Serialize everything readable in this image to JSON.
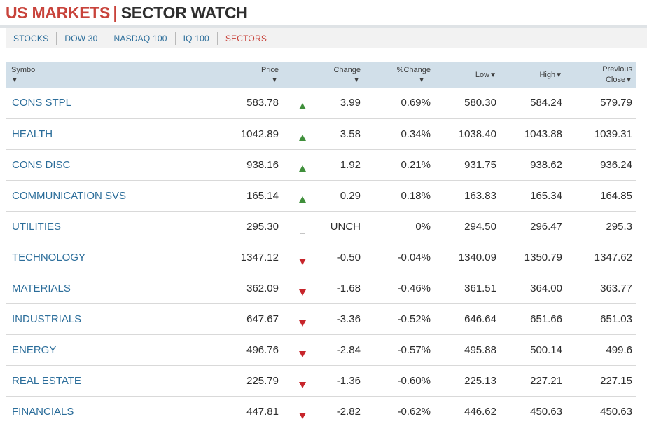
{
  "header": {
    "title_part1": "US MARKETS",
    "separator": "|",
    "title_part2": "SECTOR WATCH"
  },
  "nav": [
    {
      "label": "STOCKS"
    },
    {
      "label": "DOW 30"
    },
    {
      "label": "NASDAQ 100"
    },
    {
      "label": "IQ 100"
    },
    {
      "label": "SECTORS"
    }
  ],
  "table": {
    "headers": {
      "symbol": "Symbol",
      "price": "Price",
      "change": "Change",
      "pct_change": "%Change",
      "low": "Low",
      "high": "High",
      "previous_line1": "Previous",
      "previous_line2": "Close"
    },
    "sort_glyph": "▼",
    "rows": [
      {
        "symbol": "CONS STPL",
        "price": "583.78",
        "direction": "up",
        "change": "3.99",
        "pct": "0.69%",
        "low": "580.30",
        "high": "584.24",
        "prev": "579.79"
      },
      {
        "symbol": "HEALTH",
        "price": "1042.89",
        "direction": "up",
        "change": "3.58",
        "pct": "0.34%",
        "low": "1038.40",
        "high": "1043.88",
        "prev": "1039.31"
      },
      {
        "symbol": "CONS DISC",
        "price": "938.16",
        "direction": "up",
        "change": "1.92",
        "pct": "0.21%",
        "low": "931.75",
        "high": "938.62",
        "prev": "936.24"
      },
      {
        "symbol": "COMMUNICATION SVS",
        "price": "165.14",
        "direction": "up",
        "change": "0.29",
        "pct": "0.18%",
        "low": "163.83",
        "high": "165.34",
        "prev": "164.85"
      },
      {
        "symbol": "UTILITIES",
        "price": "295.30",
        "direction": "unch",
        "change": "UNCH",
        "pct": "0%",
        "low": "294.50",
        "high": "296.47",
        "prev": "295.3"
      },
      {
        "symbol": "TECHNOLOGY",
        "price": "1347.12",
        "direction": "down",
        "change": "-0.50",
        "pct": "-0.04%",
        "low": "1340.09",
        "high": "1350.79",
        "prev": "1347.62"
      },
      {
        "symbol": "MATERIALS",
        "price": "362.09",
        "direction": "down",
        "change": "-1.68",
        "pct": "-0.46%",
        "low": "361.51",
        "high": "364.00",
        "prev": "363.77"
      },
      {
        "symbol": "INDUSTRIALS",
        "price": "647.67",
        "direction": "down",
        "change": "-3.36",
        "pct": "-0.52%",
        "low": "646.64",
        "high": "651.66",
        "prev": "651.03"
      },
      {
        "symbol": "ENERGY",
        "price": "496.76",
        "direction": "down",
        "change": "-2.84",
        "pct": "-0.57%",
        "low": "495.88",
        "high": "500.14",
        "prev": "499.6"
      },
      {
        "symbol": "REAL ESTATE",
        "price": "225.79",
        "direction": "down",
        "change": "-1.36",
        "pct": "-0.60%",
        "low": "225.13",
        "high": "227.21",
        "prev": "227.15"
      },
      {
        "symbol": "FINANCIALS",
        "price": "447.81",
        "direction": "down",
        "change": "-2.82",
        "pct": "-0.62%",
        "low": "446.62",
        "high": "450.63",
        "prev": "450.63"
      }
    ]
  }
}
